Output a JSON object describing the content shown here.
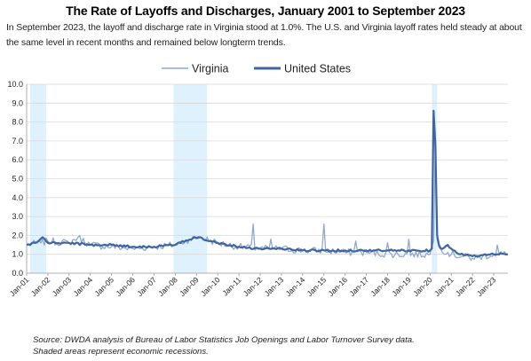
{
  "chart_data": {
    "type": "line",
    "title": "The Rate of Layoffs and Discharges, January 2001 to September 2023",
    "subtitle": "In September 2023, the layoff and discharge rate in Virginia stood at 1.0%. The U.S. and Virginia layoff rates held steady at about the same level in recent months and remained below longterm trends.",
    "xlabel": "",
    "ylabel": "",
    "ylim": [
      0,
      10
    ],
    "yticks": [
      "0.0",
      "1.0",
      "2.0",
      "3.0",
      "4.0",
      "5.0",
      "6.0",
      "7.0",
      "8.0",
      "9.0",
      "10.0"
    ],
    "x_tick_labels": [
      "Jan-01",
      "Jan-02",
      "Jan-03",
      "Jan-04",
      "Jan-05",
      "Jan-06",
      "Jan-07",
      "Jan-08",
      "Jan-09",
      "Jan-10",
      "Jan-11",
      "Jan-12",
      "Jan-13",
      "Jan-14",
      "Jan-15",
      "Jan-16",
      "Jan-17",
      "Jan-18",
      "Jan-19",
      "Jan-20",
      "Jan-21",
      "Jan-22",
      "Jan-23"
    ],
    "grid": true,
    "legend_position": "top",
    "x_start": "2001-01",
    "x_end": "2023-09",
    "recessions": [
      {
        "start": "2001-03",
        "end": "2001-11"
      },
      {
        "start": "2007-12",
        "end": "2009-06"
      },
      {
        "start": "2020-02",
        "end": "2020-04"
      }
    ],
    "colors": {
      "virginia": "#8fa9cc",
      "united_states": "#3f64a0",
      "recession": "#dff1fc",
      "grid": "#d9d9d9"
    },
    "series": [
      {
        "name": "Virginia",
        "key": "va",
        "anchors": [
          {
            "x": "2001-01",
            "y": 1.5
          },
          {
            "x": "2001-09",
            "y": 1.6
          },
          {
            "x": "2002-01",
            "y": 1.7
          },
          {
            "x": "2003-01",
            "y": 1.6
          },
          {
            "x": "2003-06",
            "y": 1.9
          },
          {
            "x": "2004-01",
            "y": 1.5
          },
          {
            "x": "2005-01",
            "y": 1.4
          },
          {
            "x": "2006-01",
            "y": 1.3
          },
          {
            "x": "2007-01",
            "y": 1.4
          },
          {
            "x": "2008-01",
            "y": 1.5
          },
          {
            "x": "2008-09",
            "y": 1.8
          },
          {
            "x": "2009-03",
            "y": 1.9
          },
          {
            "x": "2010-01",
            "y": 1.6
          },
          {
            "x": "2011-01",
            "y": 1.4
          },
          {
            "x": "2012-01",
            "y": 1.3
          },
          {
            "x": "2013-01",
            "y": 1.3
          },
          {
            "x": "2014-01",
            "y": 1.2
          },
          {
            "x": "2015-01",
            "y": 1.2
          },
          {
            "x": "2016-01",
            "y": 1.1
          },
          {
            "x": "2017-01",
            "y": 1.1
          },
          {
            "x": "2018-01",
            "y": 1.0
          },
          {
            "x": "2019-01",
            "y": 1.0
          },
          {
            "x": "2020-01",
            "y": 1.0
          },
          {
            "x": "2020-03",
            "y": 1.7
          },
          {
            "x": "2020-04",
            "y": 6.8
          },
          {
            "x": "2020-05",
            "y": 1.8
          },
          {
            "x": "2020-07",
            "y": 1.3
          },
          {
            "x": "2021-01",
            "y": 1.0
          },
          {
            "x": "2022-01",
            "y": 0.8
          },
          {
            "x": "2023-01",
            "y": 1.0
          },
          {
            "x": "2023-09",
            "y": 1.0
          }
        ],
        "spikes": [
          {
            "x": "2011-09",
            "y": 2.6
          },
          {
            "x": "2012-07",
            "y": 1.8
          },
          {
            "x": "2015-01",
            "y": 2.6
          },
          {
            "x": "2016-07",
            "y": 1.7
          },
          {
            "x": "2018-01",
            "y": 1.6
          },
          {
            "x": "2019-01",
            "y": 1.8
          },
          {
            "x": "2023-03",
            "y": 1.5
          }
        ]
      },
      {
        "name": "United States",
        "key": "us",
        "anchors": [
          {
            "x": "2001-01",
            "y": 1.5
          },
          {
            "x": "2001-06",
            "y": 1.6
          },
          {
            "x": "2001-10",
            "y": 1.9
          },
          {
            "x": "2002-01",
            "y": 1.6
          },
          {
            "x": "2003-01",
            "y": 1.6
          },
          {
            "x": "2004-01",
            "y": 1.5
          },
          {
            "x": "2005-01",
            "y": 1.5
          },
          {
            "x": "2006-01",
            "y": 1.4
          },
          {
            "x": "2007-01",
            "y": 1.4
          },
          {
            "x": "2008-01",
            "y": 1.5
          },
          {
            "x": "2008-12",
            "y": 1.9
          },
          {
            "x": "2009-03",
            "y": 1.9
          },
          {
            "x": "2009-09",
            "y": 1.7
          },
          {
            "x": "2010-01",
            "y": 1.6
          },
          {
            "x": "2011-01",
            "y": 1.4
          },
          {
            "x": "2012-01",
            "y": 1.3
          },
          {
            "x": "2013-01",
            "y": 1.3
          },
          {
            "x": "2014-01",
            "y": 1.2
          },
          {
            "x": "2015-01",
            "y": 1.2
          },
          {
            "x": "2016-01",
            "y": 1.2
          },
          {
            "x": "2017-01",
            "y": 1.2
          },
          {
            "x": "2018-01",
            "y": 1.2
          },
          {
            "x": "2019-01",
            "y": 1.2
          },
          {
            "x": "2020-01",
            "y": 1.2
          },
          {
            "x": "2020-02",
            "y": 1.3
          },
          {
            "x": "2020-03",
            "y": 8.6
          },
          {
            "x": "2020-04",
            "y": 6.8
          },
          {
            "x": "2020-05",
            "y": 2.0
          },
          {
            "x": "2020-06",
            "y": 1.5
          },
          {
            "x": "2020-07",
            "y": 1.3
          },
          {
            "x": "2020-11",
            "y": 1.5
          },
          {
            "x": "2021-01",
            "y": 1.3
          },
          {
            "x": "2021-06",
            "y": 1.0
          },
          {
            "x": "2022-01",
            "y": 0.9
          },
          {
            "x": "2023-01",
            "y": 1.0
          },
          {
            "x": "2023-09",
            "y": 1.0
          }
        ],
        "spikes": []
      }
    ]
  },
  "source": {
    "line1": "Source: DWDA analysis of Bureau of Labor Statistics Job Openings and Labor Turnover Survey data.",
    "line2": "Shaded areas represent economic recessions."
  }
}
